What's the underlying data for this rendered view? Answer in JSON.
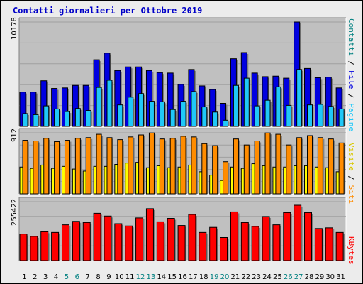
{
  "title": "Contatti giornalieri per Ottobre 2019",
  "days": [
    "1",
    "2",
    "3",
    "4",
    "5",
    "6",
    "7",
    "8",
    "9",
    "10",
    "11",
    "12",
    "13",
    "14",
    "15",
    "16",
    "17",
    "18",
    "19",
    "20",
    "21",
    "22",
    "23",
    "24",
    "25",
    "26",
    "27",
    "28",
    "29",
    "30",
    "31"
  ],
  "weekend_days": [
    "5",
    "6",
    "12",
    "13",
    "19",
    "20",
    "26",
    "27"
  ],
  "colors": {
    "pages": "#0000e0",
    "files": "#20c8f8",
    "visits": "#ffff00",
    "sites": "#ff8c00",
    "kbytes": "#ff0000",
    "weekend_label": "#008080",
    "weekday_label": "#000000",
    "plot_bg": "#c0c0c0",
    "frame_bg": "#ececec"
  },
  "panels": {
    "top": {
      "max_label": "10178",
      "legend": {
        "pages": "Pagine",
        "files": "File",
        "contatti": "Contatti",
        "sep": " / "
      }
    },
    "middle": {
      "max_label": "912",
      "legend": {
        "sites": "Siti",
        "visits": "Visite",
        "sep": " / "
      }
    },
    "bottom": {
      "max_label": "255422",
      "legend": {
        "kbytes": "KBytes"
      }
    }
  },
  "chart_data": {
    "type": "bar",
    "categories": [
      "1",
      "2",
      "3",
      "4",
      "5",
      "6",
      "7",
      "8",
      "9",
      "10",
      "11",
      "12",
      "13",
      "14",
      "15",
      "16",
      "17",
      "18",
      "19",
      "20",
      "21",
      "22",
      "23",
      "24",
      "25",
      "26",
      "27",
      "28",
      "29",
      "30",
      "31"
    ],
    "panels": [
      {
        "ymax": 10178,
        "series": [
          {
            "name": "Contatti",
            "values": [
              3350,
              3350,
              4450,
              3700,
              3750,
              4000,
              4000,
              6500,
              7150,
              5450,
              5800,
              5800,
              5450,
              5250,
              5200,
              4100,
              5550,
              3950,
              3600,
              2250,
              6600,
              7200,
              5200,
              4850,
              4900,
              4700,
              10178,
              5650,
              4750,
              4800,
              3750
            ]
          },
          {
            "name": "File",
            "values": [
              1250,
              1150,
              2000,
              1700,
              1450,
              1750,
              1550,
              3800,
              4500,
              2100,
              2850,
              3200,
              2450,
              2400,
              1650,
              2450,
              3400,
              1900,
              1400,
              600,
              4000,
              4700,
              2000,
              2550,
              3850,
              2050,
              5550,
              2100,
              2150,
              1950,
              1700
            ]
          },
          {
            "name": "Pagine",
            "values": [
              1250,
              1150,
              2000,
              1700,
              1450,
              1750,
              1550,
              3800,
              4500,
              2100,
              2850,
              3200,
              2450,
              2400,
              1650,
              2450,
              3400,
              1900,
              1400,
              600,
              4000,
              4700,
              2000,
              2550,
              3850,
              2050,
              5550,
              2100,
              2150,
              1950,
              1700
            ]
          }
        ]
      },
      {
        "ymax": 912,
        "series": [
          {
            "name": "Siti",
            "values": [
              800,
              790,
              830,
              780,
              800,
              830,
              840,
              890,
              840,
              810,
              850,
              880,
              910,
              820,
              830,
              860,
              850,
              750,
              720,
              480,
              820,
              730,
              790,
              910,
              890,
              730,
              840,
              870,
              840,
              820,
              760
            ]
          },
          {
            "name": "Visite",
            "values": [
              400,
              380,
              430,
              380,
              410,
              370,
              340,
              410,
              410,
              440,
              460,
              470,
              390,
              420,
              390,
              400,
              430,
              330,
              280,
              200,
              400,
              380,
              450,
              420,
              400,
              400,
              420,
              420,
              400,
              390,
              330
            ]
          }
        ]
      },
      {
        "ymax": 255422,
        "series": [
          {
            "name": "KBytes",
            "values": [
              115000,
              105000,
              125000,
              122000,
              155000,
              170000,
              165000,
              205000,
              193000,
              160000,
              150000,
              185000,
              225000,
              168000,
              183000,
              152000,
              200000,
              122000,
              144000,
              100000,
              211000,
              165000,
              148000,
              191000,
              155000,
              208000,
              240000,
              208000,
              139000,
              142000,
              122000
            ]
          }
        ]
      }
    ]
  }
}
